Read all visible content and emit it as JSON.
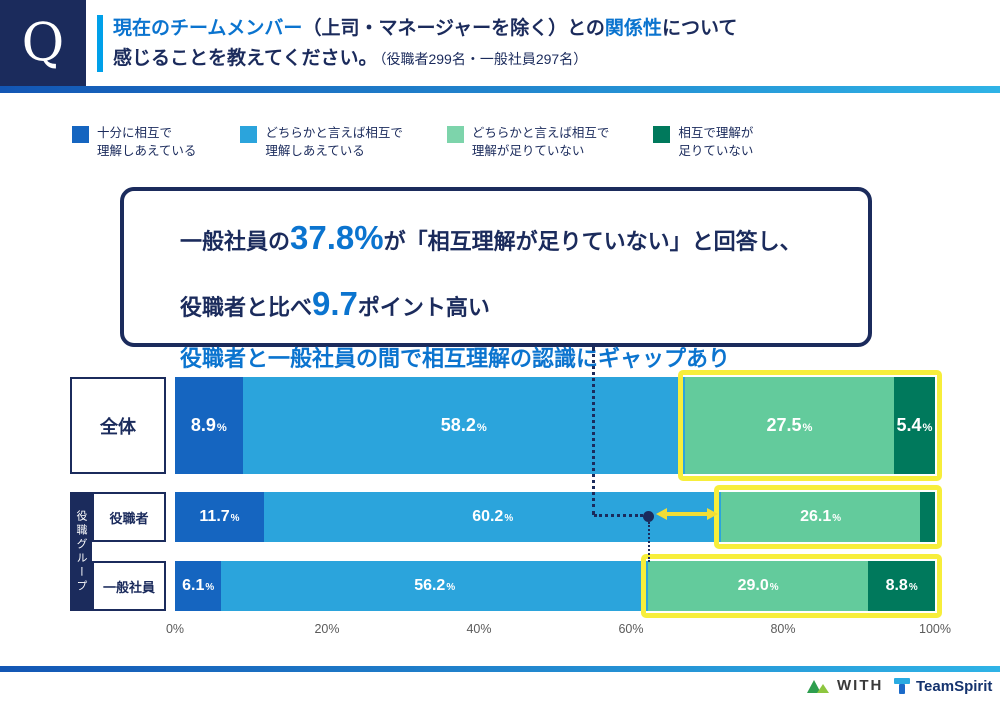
{
  "header": {
    "q_mark": "Q",
    "title": {
      "part1_blue": "現在のチームメンバー",
      "part2_dark": "（上司・マネージャーを除く）との",
      "part3_blue": "関係性",
      "part4_dark": "について",
      "line2_dark": "感じることを教えてください。",
      "line2_note": "（役職者299名・一般社員297名）"
    }
  },
  "legend": {
    "items": [
      {
        "line1": "十分に相互で",
        "line2": "理解しあえている",
        "color": "#1565c0"
      },
      {
        "line1": "どちらかと言えば相互で",
        "line2": "理解しあえている",
        "color": "#2ba4dc"
      },
      {
        "line1": "どちらかと言えば相互で",
        "line2": "理解が足りていない",
        "color": "#7dd4ab"
      },
      {
        "line1": "相互で理解が",
        "line2": "足りていない",
        "color": "#00795c"
      }
    ]
  },
  "callout": {
    "line1_pre": "一般社員の",
    "line1_big": "37.8%",
    "line1_post": "が「相互理解が足りていない」と回答し、",
    "line2_pre": "役職者と比べ",
    "line2_big": "9.7",
    "line2_post": "ポイント高い",
    "line3": "役職者と一般社員の間で相互理解の認識にギャップあり"
  },
  "chart_data": {
    "type": "bar",
    "orientation": "horizontal",
    "stacked": true,
    "categories": [
      "全体",
      "役職者",
      "一般社員"
    ],
    "group_label": "役職グループ",
    "series": [
      {
        "name": "十分に相互で理解しあえている",
        "color": "#1565c0",
        "values": [
          8.9,
          11.7,
          6.1
        ]
      },
      {
        "name": "どちらかと言えば相互で理解しあえている",
        "color": "#2ba4dc",
        "values": [
          58.2,
          60.2,
          56.2
        ]
      },
      {
        "name": "どちらかと言えば相互で理解が足りていない",
        "color": "#63cb9c",
        "values": [
          27.5,
          26.1,
          29.0
        ]
      },
      {
        "name": "相互で理解が足りていない",
        "color": "#00795c",
        "values": [
          5.4,
          2.0,
          8.8
        ]
      }
    ],
    "value_labels": [
      [
        "8.9%",
        "58.2%",
        "27.5%",
        "5.4%"
      ],
      [
        "11.7%",
        "60.2%",
        "26.1%",
        ""
      ],
      [
        "6.1%",
        "56.2%",
        "29.0%",
        "8.8%"
      ]
    ],
    "x_ticks": [
      "0%",
      "20%",
      "40%",
      "60%",
      "80%",
      "100%"
    ],
    "xlim": [
      0,
      100
    ],
    "highlight_from_series_index": 2,
    "highlight_color": "#f7ee3b",
    "gap_annotation": {
      "value_points": 9.7,
      "from_percent": 62.3,
      "to_percent": 71.9
    }
  },
  "footer": {
    "with_logo_text": "WITH",
    "teamspirit_logo_text": "TeamSpirit"
  },
  "colors": {
    "navy": "#1b2b5c",
    "blue_accent": "#0b74cf",
    "cyan_accent": "#00a0e9"
  }
}
